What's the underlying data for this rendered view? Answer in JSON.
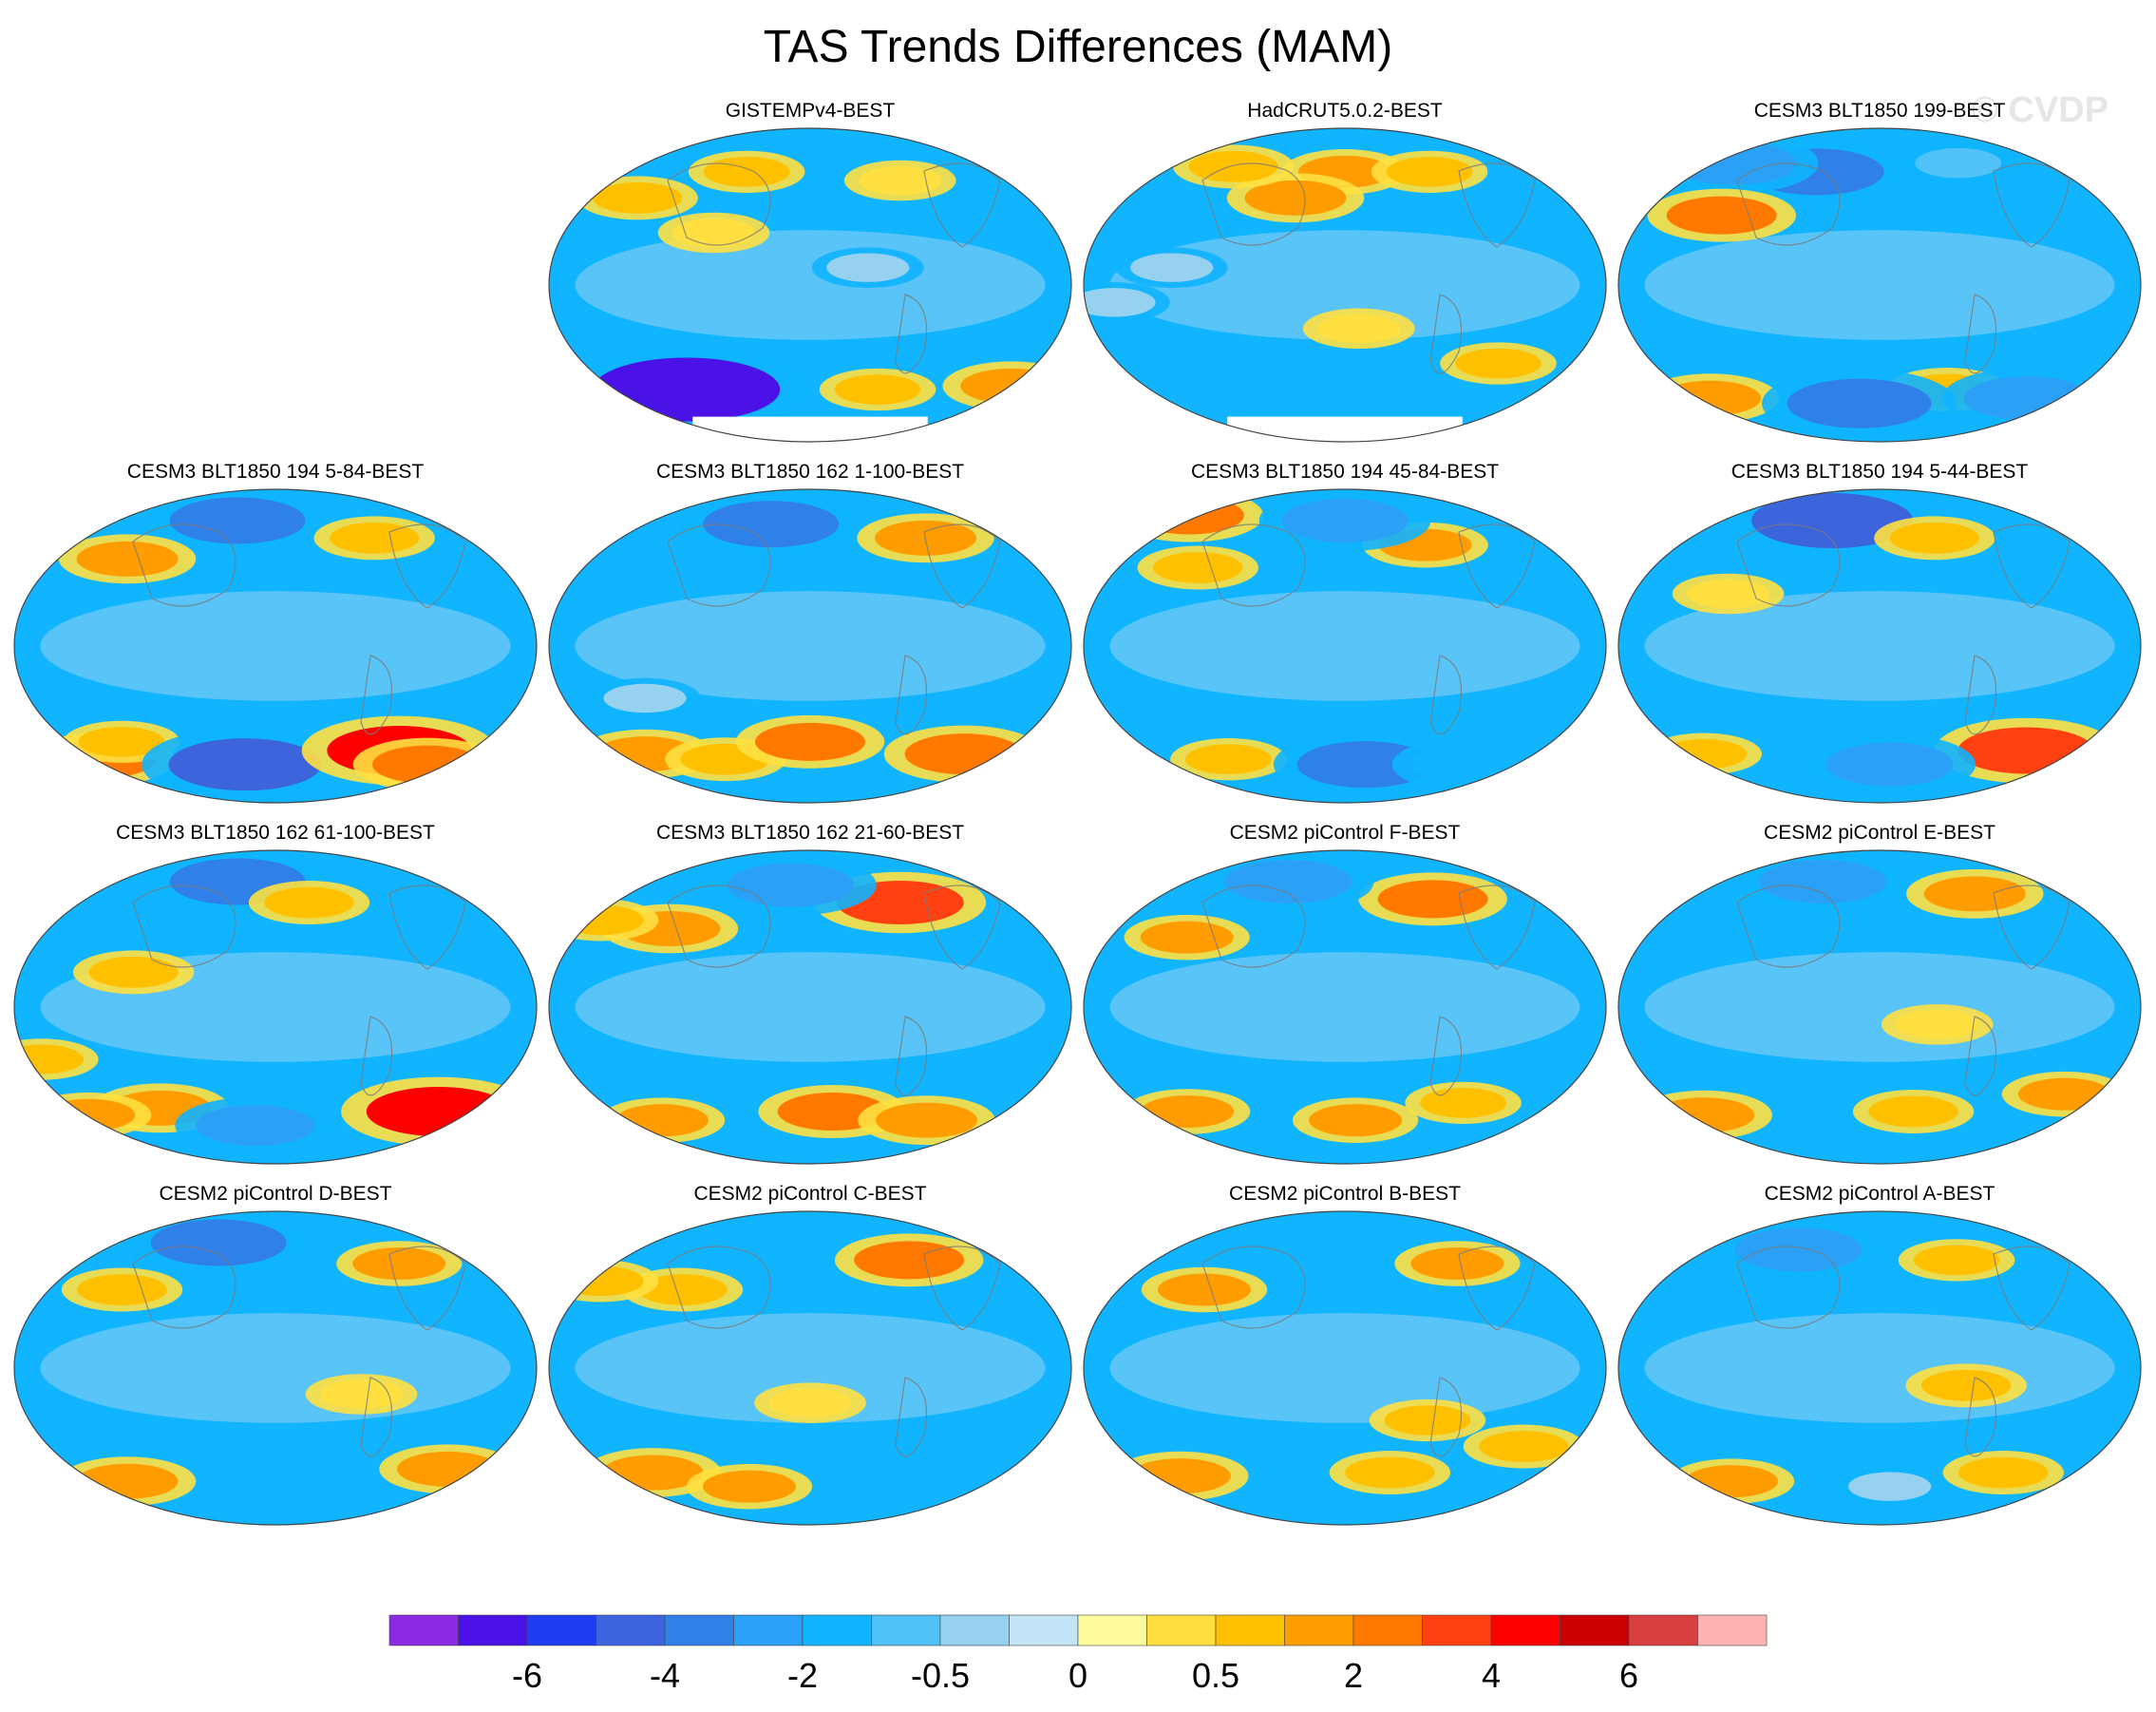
{
  "title": "TAS Trends Differences (MAM)",
  "watermark": "© CVDP",
  "chart_data": {
    "type": "heatmap",
    "title": "TAS Trends Differences (MAM)",
    "projection": "global map panels (robinson-like ellipse)",
    "layout": "4 rows x 4 columns, first cell of top row empty",
    "panels": [
      {
        "name": "GISTEMPv4-BEST",
        "has_missing_antarctica": true,
        "features": [
          {
            "lon": -140,
            "lat": 50,
            "v": 0.8
          },
          {
            "lon": -60,
            "lat": 65,
            "v": 0.6
          },
          {
            "lon": 80,
            "lat": 60,
            "v": 0.4
          },
          {
            "lon": 60,
            "lat": -60,
            "v": 0.6
          },
          {
            "lon": 175,
            "lat": -58,
            "v": 1.5
          },
          {
            "lon": -110,
            "lat": -60,
            "v": -6.5
          },
          {
            "lon": -70,
            "lat": 30,
            "v": 0.4
          },
          {
            "lon": 40,
            "lat": 10,
            "v": -0.4
          }
        ]
      },
      {
        "name": "HadCRUT5.0.2-BEST",
        "has_missing_antarctica": true,
        "features": [
          {
            "lon": 0,
            "lat": 65,
            "v": 1.0
          },
          {
            "lon": -40,
            "lat": 50,
            "v": 1.5
          },
          {
            "lon": 80,
            "lat": 65,
            "v": 0.6
          },
          {
            "lon": -110,
            "lat": 68,
            "v": 0.8
          },
          {
            "lon": 10,
            "lat": -25,
            "v": 0.4
          },
          {
            "lon": -120,
            "lat": 10,
            "v": -0.4
          },
          {
            "lon": -160,
            "lat": -10,
            "v": -0.4
          },
          {
            "lon": 120,
            "lat": -45,
            "v": 0.6
          }
        ]
      },
      {
        "name": "CESM3 BLT1850 199-BEST",
        "features": [
          {
            "lon": -60,
            "lat": 65,
            "v": -3.5
          },
          {
            "lon": -150,
            "lat": 70,
            "v": -3.0
          },
          {
            "lon": -120,
            "lat": 40,
            "v": 2.0
          },
          {
            "lon": 80,
            "lat": 70,
            "v": -0.6
          },
          {
            "lon": 60,
            "lat": -60,
            "v": 0.8
          },
          {
            "lon": -160,
            "lat": -65,
            "v": 1.5
          },
          {
            "lon": -20,
            "lat": -68,
            "v": -4.0
          },
          {
            "lon": 140,
            "lat": -65,
            "v": -3.0
          }
        ]
      },
      {
        "name": "CESM3 BLT1850 194 5-84-BEST",
        "features": [
          {
            "lon": -40,
            "lat": 72,
            "v": -3.5
          },
          {
            "lon": -120,
            "lat": 50,
            "v": 1.5
          },
          {
            "lon": 90,
            "lat": 62,
            "v": 0.8
          },
          {
            "lon": -165,
            "lat": -65,
            "v": 2.0
          },
          {
            "lon": -130,
            "lat": -55,
            "v": 0.6
          },
          {
            "lon": -30,
            "lat": -68,
            "v": -4.5
          },
          {
            "lon": 110,
            "lat": -60,
            "v": 4.0
          },
          {
            "lon": 150,
            "lat": -68,
            "v": 2.0
          }
        ]
      },
      {
        "name": "CESM3 BLT1850 162 1-100-BEST",
        "features": [
          {
            "lon": -40,
            "lat": 70,
            "v": -3.5
          },
          {
            "lon": 105,
            "lat": 62,
            "v": 1.5
          },
          {
            "lon": -150,
            "lat": -62,
            "v": 1.5
          },
          {
            "lon": -80,
            "lat": -65,
            "v": 0.8
          },
          {
            "lon": 0,
            "lat": -55,
            "v": 2.0
          },
          {
            "lon": 140,
            "lat": -62,
            "v": 2.5
          },
          {
            "lon": -120,
            "lat": -30,
            "v": -0.4
          }
        ]
      },
      {
        "name": "CESM3 BLT1850 194 45-84-BEST",
        "features": [
          {
            "lon": -115,
            "lat": 45,
            "v": 0.8
          },
          {
            "lon": 70,
            "lat": 58,
            "v": 1.0
          },
          {
            "lon": -175,
            "lat": 75,
            "v": 2.0
          },
          {
            "lon": 0,
            "lat": 72,
            "v": -3.0
          },
          {
            "lon": -110,
            "lat": -65,
            "v": 0.6
          },
          {
            "lon": 20,
            "lat": -68,
            "v": -3.5
          },
          {
            "lon": 120,
            "lat": -68,
            "v": -2.0
          }
        ]
      },
      {
        "name": "CESM3 BLT1850 194 5-44-BEST",
        "features": [
          {
            "lon": -50,
            "lat": 72,
            "v": -5.0
          },
          {
            "lon": 50,
            "lat": 62,
            "v": 0.8
          },
          {
            "lon": -110,
            "lat": 30,
            "v": 0.4
          },
          {
            "lon": 130,
            "lat": -60,
            "v": 3.5
          },
          {
            "lon": 10,
            "lat": -68,
            "v": -3.0
          },
          {
            "lon": -160,
            "lat": -62,
            "v": 0.6
          }
        ]
      },
      {
        "name": "CESM3 BLT1850 162 61-100-BEST",
        "features": [
          {
            "lon": -40,
            "lat": 72,
            "v": -3.5
          },
          {
            "lon": -100,
            "lat": 20,
            "v": 0.8
          },
          {
            "lon": 30,
            "lat": 60,
            "v": 0.8
          },
          {
            "lon": 145,
            "lat": -60,
            "v": 4.0
          },
          {
            "lon": -100,
            "lat": -58,
            "v": 1.5
          },
          {
            "lon": -170,
            "lat": -62,
            "v": 1.0
          },
          {
            "lon": -20,
            "lat": -68,
            "v": -2.5
          },
          {
            "lon": -170,
            "lat": -30,
            "v": 0.5
          }
        ]
      },
      {
        "name": "CESM3 BLT1850 162 21-60-BEST",
        "features": [
          {
            "lon": 80,
            "lat": 60,
            "v": 3.0
          },
          {
            "lon": -110,
            "lat": 45,
            "v": 1.5
          },
          {
            "lon": -170,
            "lat": 50,
            "v": 0.6
          },
          {
            "lon": 20,
            "lat": -60,
            "v": 2.0
          },
          {
            "lon": -140,
            "lat": -65,
            "v": 1.0
          },
          {
            "lon": 110,
            "lat": -65,
            "v": 1.5
          },
          {
            "lon": -20,
            "lat": 70,
            "v": -3.0
          }
        ]
      },
      {
        "name": "CESM2 piControl F-BEST",
        "features": [
          {
            "lon": 80,
            "lat": 62,
            "v": 2.0
          },
          {
            "lon": -120,
            "lat": 40,
            "v": 1.0
          },
          {
            "lon": -60,
            "lat": 72,
            "v": -3.0
          },
          {
            "lon": -140,
            "lat": -60,
            "v": 1.0
          },
          {
            "lon": 10,
            "lat": -65,
            "v": 1.0
          },
          {
            "lon": 100,
            "lat": -55,
            "v": 0.6
          }
        ]
      },
      {
        "name": "CESM2 piControl E-BEST",
        "features": [
          {
            "lon": -60,
            "lat": 72,
            "v": -3.0
          },
          {
            "lon": 90,
            "lat": 65,
            "v": 1.5
          },
          {
            "lon": -160,
            "lat": -62,
            "v": 1.5
          },
          {
            "lon": 30,
            "lat": -60,
            "v": 0.8
          },
          {
            "lon": 150,
            "lat": -50,
            "v": 1.0
          },
          {
            "lon": 40,
            "lat": -10,
            "v": 0.4
          }
        ]
      },
      {
        "name": "CESM2 piControl D-BEST",
        "features": [
          {
            "lon": -60,
            "lat": 72,
            "v": -3.5
          },
          {
            "lon": -120,
            "lat": 45,
            "v": 0.8
          },
          {
            "lon": 110,
            "lat": 60,
            "v": 1.0
          },
          {
            "lon": -140,
            "lat": -65,
            "v": 1.5
          },
          {
            "lon": 150,
            "lat": -58,
            "v": 1.5
          },
          {
            "lon": 60,
            "lat": -15,
            "v": 0.4
          }
        ]
      },
      {
        "name": "CESM2 piControl C-BEST",
        "features": [
          {
            "lon": 90,
            "lat": 62,
            "v": 2.0
          },
          {
            "lon": -100,
            "lat": 45,
            "v": 0.8
          },
          {
            "lon": -170,
            "lat": 50,
            "v": 0.6
          },
          {
            "lon": -140,
            "lat": -60,
            "v": 1.5
          },
          {
            "lon": -60,
            "lat": -68,
            "v": 1.0
          },
          {
            "lon": 0,
            "lat": -20,
            "v": 0.4
          }
        ]
      },
      {
        "name": "CESM2 piControl B-BEST",
        "features": [
          {
            "lon": -110,
            "lat": 45,
            "v": 1.0
          },
          {
            "lon": 100,
            "lat": 60,
            "v": 1.0
          },
          {
            "lon": 40,
            "lat": -60,
            "v": 0.8
          },
          {
            "lon": 60,
            "lat": -30,
            "v": 0.6
          },
          {
            "lon": -150,
            "lat": -62,
            "v": 1.5
          },
          {
            "lon": 140,
            "lat": -45,
            "v": 0.8
          }
        ]
      },
      {
        "name": "CESM2 piControl A-BEST",
        "features": [
          {
            "lon": -80,
            "lat": 68,
            "v": -3.0
          },
          {
            "lon": 60,
            "lat": -10,
            "v": 0.8
          },
          {
            "lon": 70,
            "lat": 62,
            "v": 0.6
          },
          {
            "lon": -140,
            "lat": -65,
            "v": 1.0
          },
          {
            "lon": 110,
            "lat": -60,
            "v": 0.8
          },
          {
            "lon": 10,
            "lat": -68,
            "v": -0.4
          }
        ]
      }
    ],
    "colorbar": {
      "tick_labels": [
        "-6",
        "-4",
        "-2",
        "-0.5",
        "0",
        "0.5",
        "2",
        "4",
        "6"
      ],
      "boundaries": [
        -7,
        -6,
        -5,
        -4,
        -3,
        -2,
        -1,
        -0.5,
        -0.2,
        0,
        0.2,
        0.5,
        1,
        2,
        3,
        4,
        5,
        6,
        7
      ],
      "colors": [
        "#8a2be2",
        "#4a12e6",
        "#1e3cf0",
        "#3c64dc",
        "#3080ea",
        "#2aa0f6",
        "#10b4ff",
        "#50c2f8",
        "#96d2f0",
        "#c2e4f6",
        "#fffca0",
        "#ffe040",
        "#ffc000",
        "#ff9c00",
        "#ff7800",
        "#ff4010",
        "#ff0000",
        "#cc0000",
        "#d84040",
        "#ffb4b4"
      ]
    },
    "background_value": -1.2
  }
}
